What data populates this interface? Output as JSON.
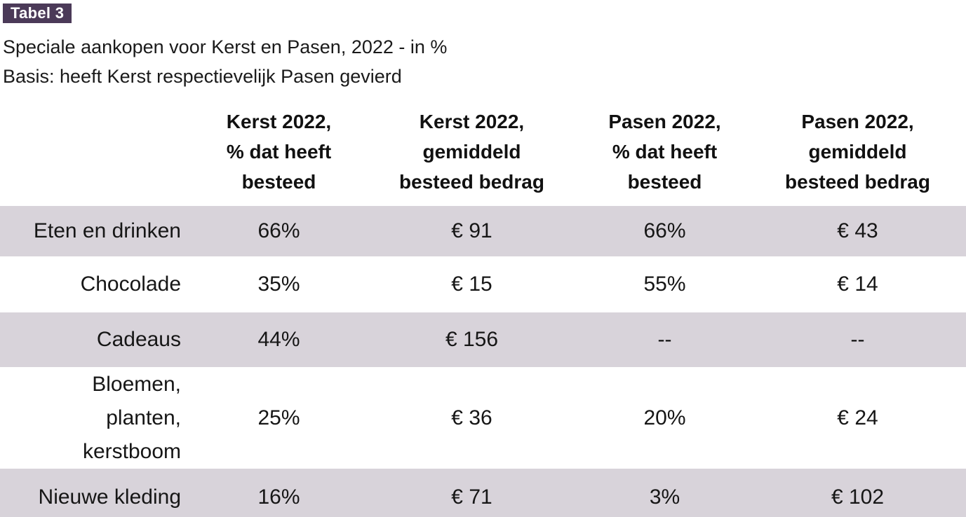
{
  "page": {
    "badge": "Tabel 3",
    "subtitle_line1": "Speciale aankopen voor Kerst en Pasen, 2022 - in %",
    "subtitle_line2": "Basis: heeft Kerst respectievelijk Pasen gevierd"
  },
  "table": {
    "headers": [
      "Kerst 2022,\n% dat heeft\nbesteed",
      "Kerst 2022,\ngemiddeld\nbesteed bedrag",
      "Pasen 2022,\n% dat heeft\nbesteed",
      "Pasen 2022,\ngemiddeld\nbesteed bedrag"
    ],
    "rows": [
      {
        "label": "Eten en drinken",
        "values": [
          "66%",
          "€ 91",
          "66%",
          "€ 43"
        ]
      },
      {
        "label": "Chocolade",
        "values": [
          "35%",
          "€ 15",
          "55%",
          "€ 14"
        ]
      },
      {
        "label": "Cadeaus",
        "values": [
          "44%",
          "€ 156",
          "--",
          "--"
        ]
      },
      {
        "label": "Bloemen,\nplanten,\nkerstboom",
        "values": [
          "25%",
          "€ 36",
          "20%",
          "€ 24"
        ]
      },
      {
        "label": "Nieuwe kleding",
        "values": [
          "16%",
          "€ 71",
          "3%",
          "€ 102"
        ]
      }
    ]
  },
  "colors": {
    "badge_background": "#4b3a58",
    "badge_text": "#ffffff",
    "row_band": "#d8d3da",
    "text": "#161616"
  },
  "chart_data": {
    "type": "table",
    "title": "Tabel 3 — Speciale aankopen voor Kerst en Pasen, 2022 - in %",
    "subtitle": "Basis: heeft Kerst respectievelijk Pasen gevierd",
    "columns": [
      "",
      "Kerst 2022, % dat heeft besteed",
      "Kerst 2022, gemiddeld besteed bedrag",
      "Pasen 2022, % dat heeft besteed",
      "Pasen 2022, gemiddeld besteed bedrag"
    ],
    "rows": [
      [
        "Eten en drinken",
        "66%",
        "€ 91",
        "66%",
        "€ 43"
      ],
      [
        "Chocolade",
        "35%",
        "€ 15",
        "55%",
        "€ 14"
      ],
      [
        "Cadeaus",
        "44%",
        "€ 156",
        "--",
        "--"
      ],
      [
        "Bloemen, planten, kerstboom",
        "25%",
        "€ 36",
        "20%",
        "€ 24"
      ],
      [
        "Nieuwe kleding",
        "16%",
        "€ 71",
        "3%",
        "€ 102"
      ]
    ]
  }
}
